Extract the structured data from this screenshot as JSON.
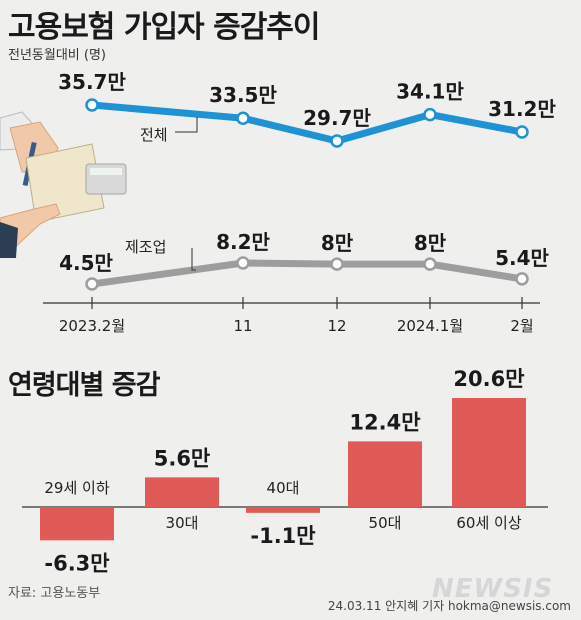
{
  "title": "고용보험 가입자 증감추이",
  "unit_label": "전년동월대비 (명)",
  "section2_title": "연령대별 증감",
  "source": "자료: 고용노동부",
  "credit": "24.03.11 안지혜 기자 hokma@newsis.com",
  "watermark": "NEWSIS",
  "chart_data": [
    {
      "type": "line",
      "title": "고용보험 가입자 증감추이",
      "ylabel": "전년동월대비 (명)",
      "categories": [
        "2023.2월",
        "11",
        "12",
        "2024.1월",
        "2월"
      ],
      "series": [
        {
          "name": "전체",
          "values": [
            35.7,
            33.5,
            29.7,
            34.1,
            31.2
          ],
          "labels": [
            "35.7만",
            "33.5만",
            "29.7만",
            "34.1만",
            "31.2만"
          ],
          "color": "#1d92d4"
        },
        {
          "name": "제조업",
          "values": [
            4.5,
            8.2,
            8,
            8,
            5.4
          ],
          "labels": [
            "4.5만",
            "8.2만",
            "8만",
            "8만",
            "5.4만"
          ],
          "color": "#9d9d9d"
        }
      ]
    },
    {
      "type": "bar",
      "title": "연령대별 증감",
      "categories": [
        "29세 이하",
        "30대",
        "40대",
        "50대",
        "60세 이상"
      ],
      "values": [
        -6.3,
        5.6,
        -1.1,
        12.4,
        20.6
      ],
      "labels": [
        "-6.3만",
        "5.6만",
        "-1.1만",
        "12.4만",
        "20.6만"
      ],
      "color": "#e05b57"
    }
  ]
}
